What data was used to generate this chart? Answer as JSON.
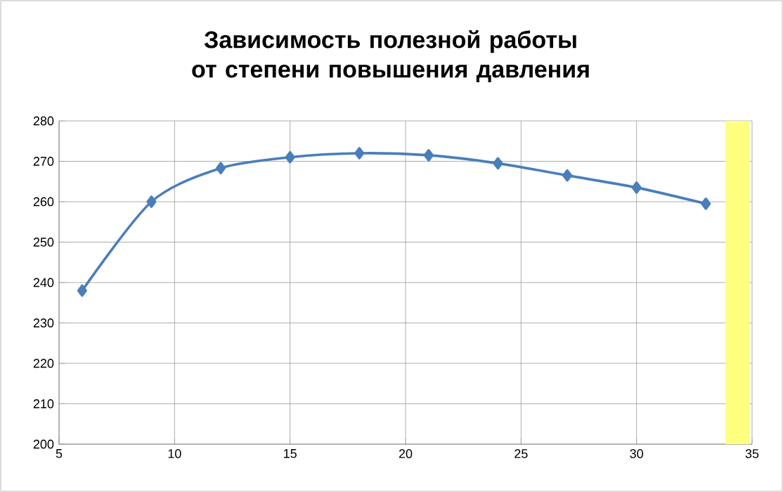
{
  "chart_data": {
    "type": "line",
    "title": "Зависимость полезной работы от степени повышения давления",
    "x": [
      6,
      9,
      12,
      15,
      18,
      21,
      24,
      27,
      30,
      33
    ],
    "series": [
      {
        "color": "#4a7ebb",
        "values": [
          238,
          260,
          268.3,
          271,
          272,
          271.5,
          269.5,
          266.5,
          263.5,
          259.5
        ]
      }
    ],
    "xlim": [
      5,
      35
    ],
    "xticks": [
      5,
      10,
      15,
      20,
      25,
      30,
      35
    ],
    "ylim": [
      200,
      280
    ],
    "yticks": [
      200,
      210,
      220,
      230,
      240,
      250,
      260,
      270,
      280
    ],
    "bands": [
      {
        "axis": "x",
        "from": 33.85,
        "to": 34.9,
        "color": "#ffff80"
      }
    ],
    "grid": true,
    "marker": "diamond",
    "line_style": "solid",
    "legend": false
  }
}
